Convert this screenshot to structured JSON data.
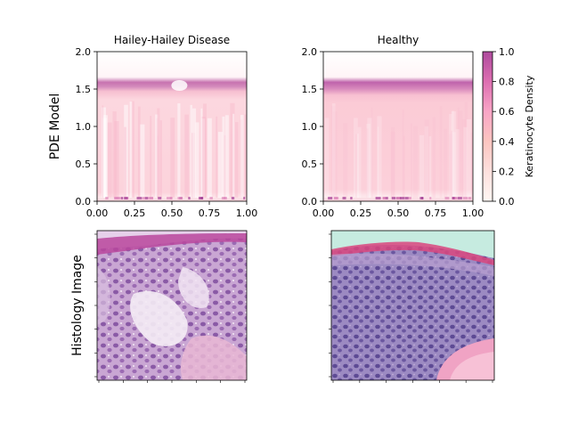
{
  "figure": {
    "row_labels": [
      "PDE Model",
      "Histology Image"
    ],
    "colorbar": {
      "label": "Keratinocyte Density",
      "ticks": [
        0.0,
        0.2,
        0.4,
        0.6,
        0.8,
        1.0
      ],
      "tick_labels": [
        "0.0",
        "0.2",
        "0.4",
        "0.6",
        "0.8",
        "1.0"
      ],
      "range": [
        0,
        1
      ],
      "colormap": "RdPu (white to magenta)"
    }
  },
  "chart_data": [
    {
      "type": "heatmap",
      "title": "Hailey-Hailey Disease",
      "xlim": [
        0,
        1
      ],
      "ylim": [
        0,
        2
      ],
      "xticks": [
        "0.00",
        "0.25",
        "0.50",
        "0.75",
        "1.00"
      ],
      "yticks": [
        "0.0",
        "0.5",
        "1.0",
        "1.5",
        "2.0"
      ],
      "density_profile": {
        "bulk_value_0_to_1_4": 0.22,
        "peak_band_y": [
          1.45,
          1.6
        ],
        "peak_value": 0.72,
        "above_1_62": 0.0,
        "gap_near_x": 0.55,
        "texture": "vertical streaks, lighter gaps"
      }
    },
    {
      "type": "heatmap",
      "title": "Healthy",
      "xlim": [
        0,
        1
      ],
      "ylim": [
        0,
        2
      ],
      "xticks": [
        "0.00",
        "0.25",
        "0.50",
        "0.75",
        "1.00"
      ],
      "yticks": [
        "0.0",
        "0.5",
        "1.0",
        "1.5",
        "2.0"
      ],
      "density_profile": {
        "bulk_value_0_to_1_4": 0.25,
        "peak_band_y": [
          1.45,
          1.6
        ],
        "peak_value": 0.75,
        "above_1_62": 0.0,
        "texture": "uniform, faint streaks near base"
      }
    }
  ],
  "histology": [
    {
      "panel": "hailey-hailey-histology",
      "description_colors": [
        "#c7a3d4",
        "#b06ab8",
        "#f3e6f3"
      ]
    },
    {
      "panel": "healthy-histology",
      "description_colors": [
        "#8f7ab8",
        "#d98fc4",
        "#c6ebe0"
      ]
    }
  ]
}
